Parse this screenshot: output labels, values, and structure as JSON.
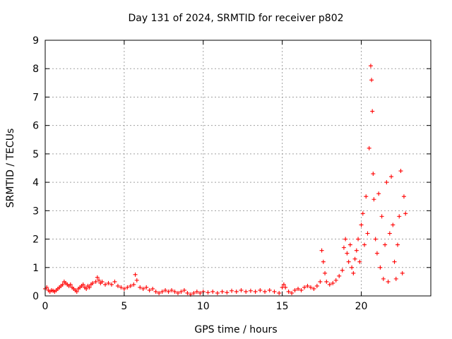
{
  "chart_data": {
    "type": "scatter",
    "title": "Day 131 of 2024, SRMTID for receiver p802",
    "xlabel": "GPS time / hours",
    "ylabel": "SRMTID / TECUs",
    "xlim": [
      0,
      24.4
    ],
    "ylim": [
      0,
      9
    ],
    "xticks": [
      0,
      5,
      10,
      15,
      20
    ],
    "yticks": [
      0,
      1,
      2,
      3,
      4,
      5,
      6,
      7,
      8,
      9
    ],
    "grid": true,
    "marker": "plus",
    "color": "#ff0000",
    "series": [
      {
        "name": "SRMTID",
        "points": [
          [
            0.0,
            0.25
          ],
          [
            0.1,
            0.3
          ],
          [
            0.2,
            0.2
          ],
          [
            0.3,
            0.15
          ],
          [
            0.4,
            0.2
          ],
          [
            0.5,
            0.18
          ],
          [
            0.6,
            0.15
          ],
          [
            0.7,
            0.2
          ],
          [
            0.8,
            0.25
          ],
          [
            0.9,
            0.3
          ],
          [
            1.0,
            0.35
          ],
          [
            1.1,
            0.4
          ],
          [
            1.2,
            0.5
          ],
          [
            1.3,
            0.45
          ],
          [
            1.4,
            0.4
          ],
          [
            1.5,
            0.35
          ],
          [
            1.6,
            0.4
          ],
          [
            1.7,
            0.3
          ],
          [
            1.8,
            0.25
          ],
          [
            1.9,
            0.2
          ],
          [
            2.0,
            0.15
          ],
          [
            2.1,
            0.25
          ],
          [
            2.2,
            0.3
          ],
          [
            2.3,
            0.35
          ],
          [
            2.4,
            0.4
          ],
          [
            2.5,
            0.3
          ],
          [
            2.6,
            0.25
          ],
          [
            2.7,
            0.35
          ],
          [
            2.8,
            0.3
          ],
          [
            2.9,
            0.4
          ],
          [
            3.0,
            0.45
          ],
          [
            3.2,
            0.5
          ],
          [
            3.3,
            0.65
          ],
          [
            3.4,
            0.55
          ],
          [
            3.5,
            0.45
          ],
          [
            3.6,
            0.5
          ],
          [
            3.8,
            0.4
          ],
          [
            4.0,
            0.45
          ],
          [
            4.2,
            0.4
          ],
          [
            4.4,
            0.5
          ],
          [
            4.6,
            0.35
          ],
          [
            4.8,
            0.3
          ],
          [
            5.0,
            0.25
          ],
          [
            5.2,
            0.3
          ],
          [
            5.4,
            0.35
          ],
          [
            5.6,
            0.4
          ],
          [
            5.7,
            0.75
          ],
          [
            5.8,
            0.55
          ],
          [
            6.0,
            0.3
          ],
          [
            6.2,
            0.25
          ],
          [
            6.4,
            0.3
          ],
          [
            6.6,
            0.2
          ],
          [
            6.8,
            0.25
          ],
          [
            7.0,
            0.15
          ],
          [
            7.2,
            0.1
          ],
          [
            7.4,
            0.15
          ],
          [
            7.6,
            0.2
          ],
          [
            7.8,
            0.15
          ],
          [
            8.0,
            0.2
          ],
          [
            8.2,
            0.15
          ],
          [
            8.4,
            0.1
          ],
          [
            8.6,
            0.15
          ],
          [
            8.8,
            0.2
          ],
          [
            9.0,
            0.1
          ],
          [
            9.2,
            0.05
          ],
          [
            9.4,
            0.1
          ],
          [
            9.6,
            0.15
          ],
          [
            9.8,
            0.1
          ],
          [
            10.0,
            0.15
          ],
          [
            10.3,
            0.12
          ],
          [
            10.6,
            0.15
          ],
          [
            10.9,
            0.1
          ],
          [
            11.2,
            0.15
          ],
          [
            11.5,
            0.12
          ],
          [
            11.8,
            0.18
          ],
          [
            12.1,
            0.15
          ],
          [
            12.4,
            0.2
          ],
          [
            12.7,
            0.15
          ],
          [
            13.0,
            0.18
          ],
          [
            13.3,
            0.15
          ],
          [
            13.6,
            0.2
          ],
          [
            13.9,
            0.15
          ],
          [
            14.2,
            0.2
          ],
          [
            14.5,
            0.15
          ],
          [
            14.8,
            0.1
          ],
          [
            15.0,
            0.3
          ],
          [
            15.1,
            0.4
          ],
          [
            15.2,
            0.3
          ],
          [
            15.4,
            0.15
          ],
          [
            15.6,
            0.1
          ],
          [
            15.8,
            0.2
          ],
          [
            16.0,
            0.25
          ],
          [
            16.2,
            0.2
          ],
          [
            16.4,
            0.3
          ],
          [
            16.6,
            0.35
          ],
          [
            16.8,
            0.3
          ],
          [
            17.0,
            0.25
          ],
          [
            17.2,
            0.35
          ],
          [
            17.4,
            0.5
          ],
          [
            17.5,
            1.6
          ],
          [
            17.6,
            1.2
          ],
          [
            17.7,
            0.8
          ],
          [
            17.8,
            0.5
          ],
          [
            18.0,
            0.4
          ],
          [
            18.2,
            0.45
          ],
          [
            18.4,
            0.55
          ],
          [
            18.6,
            0.7
          ],
          [
            18.8,
            0.9
          ],
          [
            18.9,
            1.7
          ],
          [
            19.0,
            2.0
          ],
          [
            19.1,
            1.5
          ],
          [
            19.2,
            1.2
          ],
          [
            19.3,
            1.8
          ],
          [
            19.4,
            1.0
          ],
          [
            19.5,
            0.8
          ],
          [
            19.6,
            1.3
          ],
          [
            19.7,
            1.6
          ],
          [
            19.8,
            2.0
          ],
          [
            19.9,
            1.2
          ],
          [
            20.0,
            2.5
          ],
          [
            20.1,
            2.9
          ],
          [
            20.2,
            1.8
          ],
          [
            20.3,
            3.5
          ],
          [
            20.4,
            2.2
          ],
          [
            20.5,
            5.2
          ],
          [
            20.6,
            8.1
          ],
          [
            20.65,
            7.6
          ],
          [
            20.7,
            6.5
          ],
          [
            20.75,
            4.3
          ],
          [
            20.8,
            3.4
          ],
          [
            20.9,
            2.0
          ],
          [
            21.0,
            1.5
          ],
          [
            21.1,
            3.6
          ],
          [
            21.2,
            1.0
          ],
          [
            21.3,
            2.8
          ],
          [
            21.4,
            0.6
          ],
          [
            21.5,
            1.8
          ],
          [
            21.6,
            4.0
          ],
          [
            21.7,
            0.5
          ],
          [
            21.8,
            2.2
          ],
          [
            21.9,
            4.2
          ],
          [
            22.0,
            2.5
          ],
          [
            22.1,
            1.2
          ],
          [
            22.2,
            0.6
          ],
          [
            22.3,
            1.8
          ],
          [
            22.4,
            2.8
          ],
          [
            22.5,
            4.4
          ],
          [
            22.6,
            0.8
          ],
          [
            22.7,
            3.5
          ],
          [
            22.8,
            2.9
          ]
        ]
      }
    ]
  }
}
